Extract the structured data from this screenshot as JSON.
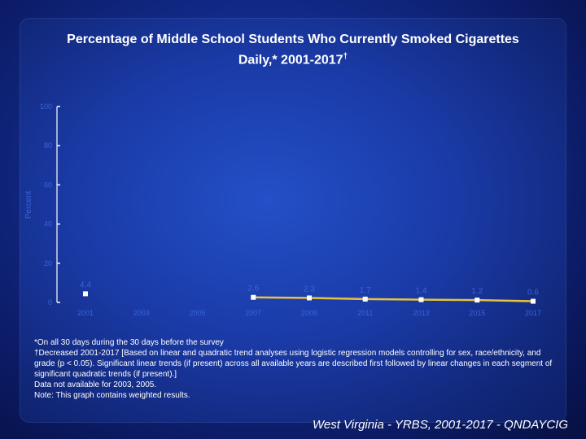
{
  "title_line1": "Percentage of Middle School Students Who Currently Smoked Cigarettes",
  "title_line2": "Daily,* 2001-2017",
  "title_mark": "†",
  "notes": {
    "n1": "*On all 30 days during the 30 days before the survey",
    "n2": "†Decreased 2001-2017 [Based on linear and quadratic trend analyses using logistic regression models controlling for sex, race/ethnicity, and grade (p < 0.05). Significant linear trends (if present) across all available years are described first followed by linear changes in each segment of significant quadratic trends (if present).]",
    "n3": "Data not available for 2003, 2005.",
    "n4": "Note: This graph contains weighted results."
  },
  "footer": "West Virginia - YRBS, 2001-2017 - QNDAYCIG",
  "colors": {
    "line": "#e8c23a",
    "marker": "#ffffff",
    "axis": "#ffffff",
    "faint_label": "#3a63d8",
    "text": "#ffffff"
  },
  "chart_data": {
    "type": "line",
    "title": "Percentage of Middle School Students Who Currently Smoked Cigarettes Daily,* 2001-2017†",
    "xlabel": "",
    "ylabel": "Percent",
    "ylim": [
      0,
      100
    ],
    "yticks": [
      0,
      20,
      40,
      60,
      80,
      100
    ],
    "ytick_labels": [
      "0",
      "20",
      "40",
      "60",
      "80",
      "100"
    ],
    "categories": [
      "2001",
      "2003",
      "2005",
      "2007",
      "2009",
      "2011",
      "2013",
      "2015",
      "2017"
    ],
    "values": [
      4.4,
      null,
      null,
      2.6,
      2.3,
      1.7,
      1.4,
      1.2,
      0.6
    ],
    "value_labels": [
      "4.4",
      "",
      "",
      "2.6",
      "2.3",
      "1.7",
      "1.4",
      "1.2",
      "0.6"
    ],
    "grid": false,
    "legend": "none"
  }
}
